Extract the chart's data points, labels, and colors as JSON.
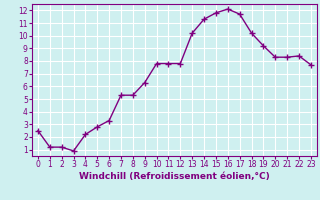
{
  "x": [
    0,
    1,
    2,
    3,
    4,
    5,
    6,
    7,
    8,
    9,
    10,
    11,
    12,
    13,
    14,
    15,
    16,
    17,
    18,
    19,
    20,
    21,
    22,
    23
  ],
  "y": [
    2.5,
    1.2,
    1.2,
    0.9,
    2.2,
    2.8,
    3.3,
    5.3,
    5.3,
    6.3,
    7.8,
    7.8,
    7.8,
    10.2,
    11.3,
    11.8,
    12.1,
    11.7,
    10.2,
    9.2,
    8.3,
    8.3,
    8.4,
    7.7
  ],
  "line_color": "#800080",
  "marker": "+",
  "markersize": 4,
  "markeredgewidth": 1.0,
  "linewidth": 1.0,
  "xlabel": "Windchill (Refroidissement éolien,°C)",
  "xlim": [
    -0.5,
    23.5
  ],
  "ylim": [
    0.5,
    12.5
  ],
  "yticks": [
    1,
    2,
    3,
    4,
    5,
    6,
    7,
    8,
    9,
    10,
    11,
    12
  ],
  "xticks": [
    0,
    1,
    2,
    3,
    4,
    5,
    6,
    7,
    8,
    9,
    10,
    11,
    12,
    13,
    14,
    15,
    16,
    17,
    18,
    19,
    20,
    21,
    22,
    23
  ],
  "bg_color": "#cff0f0",
  "grid_color": "#ffffff",
  "tick_label_color": "#800080",
  "xlabel_color": "#800080",
  "tick_fontsize": 5.5,
  "xlabel_fontsize": 6.5,
  "spine_color": "#800080"
}
